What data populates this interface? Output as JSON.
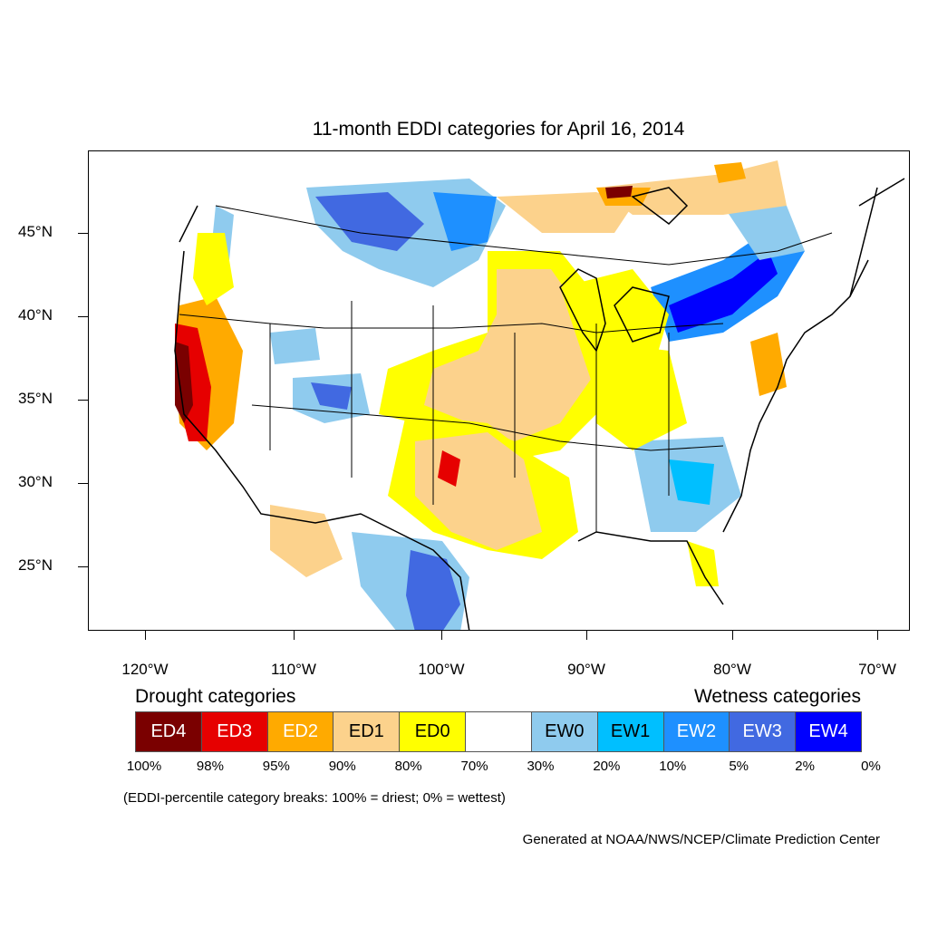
{
  "title": "11-month EDDI categories for April 16, 2014",
  "y_axis_labels": [
    "45°N",
    "40°N",
    "35°N",
    "30°N",
    "25°N"
  ],
  "x_axis_labels": [
    "120°W",
    "110°W",
    "100°W",
    "90°W",
    "80°W",
    "70°W"
  ],
  "legend": {
    "drought_heading": "Drought categories",
    "wetness_heading": "Wetness categories",
    "categories": [
      {
        "label": "ED4",
        "color": "#7a0000",
        "text_color": "#ffffff"
      },
      {
        "label": "ED3",
        "color": "#e60000",
        "text_color": "#ffffff"
      },
      {
        "label": "ED2",
        "color": "#ffaa00",
        "text_color": "#ffffff"
      },
      {
        "label": "ED1",
        "color": "#fcd28c",
        "text_color": "#000000"
      },
      {
        "label": "ED0",
        "color": "#ffff00",
        "text_color": "#000000"
      },
      {
        "label": "",
        "color": "#ffffff",
        "text_color": "#000000"
      },
      {
        "label": "EW0",
        "color": "#8fcbee",
        "text_color": "#000000"
      },
      {
        "label": "EW1",
        "color": "#00bfff",
        "text_color": "#000000"
      },
      {
        "label": "EW2",
        "color": "#1e90ff",
        "text_color": "#ffffff"
      },
      {
        "label": "EW3",
        "color": "#4169e1",
        "text_color": "#ffffff"
      },
      {
        "label": "EW4",
        "color": "#0000ff",
        "text_color": "#ffffff"
      }
    ],
    "percentiles": [
      "100%",
      "98%",
      "95%",
      "90%",
      "80%",
      "70%",
      "30%",
      "20%",
      "10%",
      "5%",
      "2%",
      "0%"
    ]
  },
  "note": "(EDDI-percentile category breaks: 100% = driest; 0% = wettest)",
  "credit": "Generated at NOAA/NWS/NCEP/Climate Prediction Center"
}
